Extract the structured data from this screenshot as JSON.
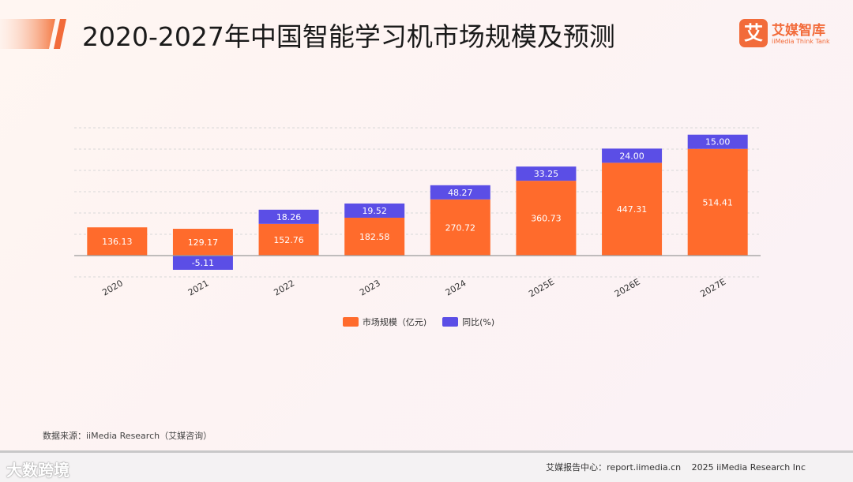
{
  "header": {
    "title": "2020-2027年中国智能学习机市场规模及预测",
    "logo_mark": "艾",
    "logo_name": "艾媒智库",
    "logo_sub": "iiMedia Think Tank"
  },
  "colors": {
    "accent": "#f26b3a",
    "bar_market": "#ff6b2c",
    "bar_yoy": "#5b4ee6",
    "grid": "#d8d8d8",
    "axis": "#9a9a9a"
  },
  "chart_data": {
    "type": "bar",
    "stacked": true,
    "title": "2020-2027年中国智能学习机市场规模及预测",
    "categories": [
      "2020",
      "2021",
      "2022",
      "2023",
      "2024",
      "2025E",
      "2026E",
      "2027E"
    ],
    "series": [
      {
        "name": "市场规模（亿元)",
        "values": [
          136.13,
          129.17,
          152.76,
          182.58,
          270.72,
          360.73,
          447.31,
          514.41
        ]
      },
      {
        "name": "同比(%)",
        "values": [
          null,
          -5.11,
          18.26,
          19.52,
          48.27,
          33.25,
          24.0,
          15.0
        ]
      }
    ],
    "yoy_labels": [
      "",
      "-5.11",
      "18.26",
      "19.52",
      "48.27",
      "33.25",
      "24.00",
      "15.00"
    ],
    "market_labels": [
      "136.13",
      "129.17",
      "152.76",
      "182.58",
      "270.72",
      "360.73",
      "447.31",
      "514.41"
    ],
    "ylim": [
      -100,
      500
    ],
    "grid": true,
    "legend_position": "bottom-center",
    "xlabel": "",
    "ylabel": ""
  },
  "source": "数据来源：iiMedia Research（艾媒咨询）",
  "footer": {
    "watermark": "大数跨境",
    "report_center": "艾媒报告中心：report.iimedia.cn",
    "copyright": "2025 iiMedia Research Inc"
  }
}
